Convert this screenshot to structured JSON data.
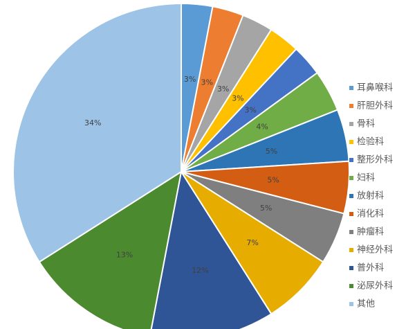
{
  "chart_data": {
    "type": "pie",
    "categories": [
      "耳鼻喉科",
      "肝胆外科",
      "骨科",
      "检验科",
      "整形外科",
      "妇科",
      "放射科",
      "消化科",
      "肿瘤科",
      "神经外科",
      "普外科",
      "泌尿外科",
      "其他"
    ],
    "values": [
      3,
      3,
      3,
      3,
      3,
      4,
      5,
      5,
      5,
      7,
      12,
      13,
      34
    ],
    "value_labels": [
      "3%",
      "3%",
      "3%",
      "3%",
      "3%",
      "4%",
      "5%",
      "5%",
      "5%",
      "7%",
      "12%",
      "13%",
      "34%"
    ],
    "colors": [
      "#5b9bd5",
      "#ed7d31",
      "#a5a5a5",
      "#ffc000",
      "#4472c4",
      "#70ad47",
      "#2e75b6",
      "#d35e13",
      "#7f7f7f",
      "#e6ad00",
      "#2f5597",
      "#4c8a30",
      "#9dc3e6"
    ],
    "legend": "right"
  }
}
